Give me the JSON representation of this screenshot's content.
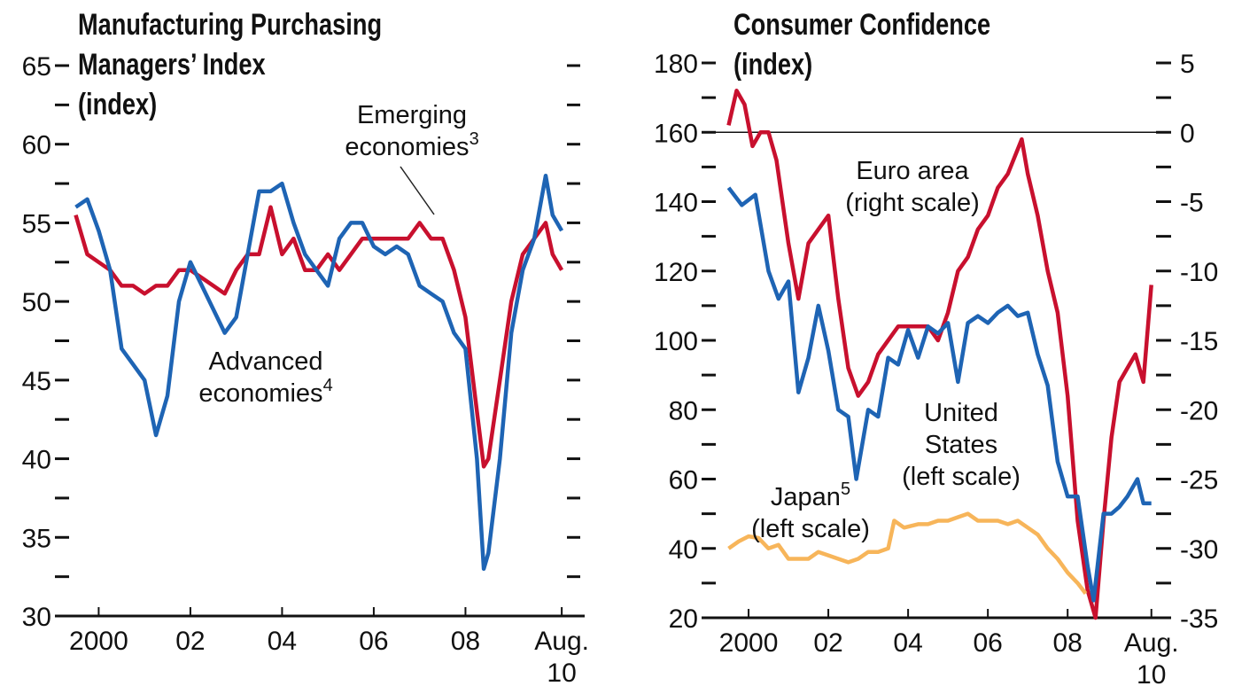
{
  "chart_data": [
    {
      "type": "line",
      "title": "Manufacturing Purchasing Managers’ Index",
      "ylabel": "(index)",
      "xlim": [
        1999.7,
        2011.1
      ],
      "xticks": [
        {
          "value": 2000.5,
          "label": "2000"
        },
        {
          "value": 2002.5,
          "label": "02"
        },
        {
          "value": 2004.5,
          "label": "04"
        },
        {
          "value": 2006.5,
          "label": "06"
        },
        {
          "value": 2008.5,
          "label": "08"
        },
        {
          "value": 2010.6,
          "label": "Aug. 10"
        }
      ],
      "ylim": [
        30,
        65
      ],
      "yticks": [
        30,
        35,
        40,
        45,
        50,
        55,
        60,
        65
      ],
      "minor_yticks": [
        32.5,
        37.5,
        42.5,
        47.5,
        52.5,
        57.5,
        62.5
      ],
      "series": [
        {
          "name": "Emerging economies",
          "sup": "3",
          "color": "#c8102e",
          "x": [
            2000,
            2000.25,
            2000.5,
            2000.75,
            2001,
            2001.25,
            2001.5,
            2001.75,
            2002,
            2002.25,
            2002.5,
            2002.75,
            2003,
            2003.25,
            2003.5,
            2003.75,
            2004,
            2004.25,
            2004.5,
            2004.75,
            2005,
            2005.25,
            2005.5,
            2005.75,
            2006,
            2006.25,
            2006.5,
            2006.75,
            2007,
            2007.25,
            2007.5,
            2007.75,
            2008,
            2008.25,
            2008.5,
            2008.75,
            2008.9,
            2009,
            2009.25,
            2009.5,
            2009.75,
            2010,
            2010.25,
            2010.4,
            2010.6
          ],
          "values": [
            55.5,
            53,
            52.5,
            52,
            51,
            51,
            50.5,
            51,
            51,
            52,
            52,
            51.5,
            51,
            50.5,
            52,
            53,
            53,
            56,
            53,
            54,
            52,
            52,
            53,
            52,
            53,
            54,
            54,
            54,
            54,
            54,
            55,
            54,
            54,
            52,
            49,
            43,
            39.5,
            40,
            45,
            50,
            53,
            54,
            55,
            53,
            52
          ]
        },
        {
          "name": "Advanced economies",
          "sup": "4",
          "color": "#1e64b4",
          "x": [
            2000,
            2000.25,
            2000.5,
            2000.75,
            2001,
            2001.25,
            2001.5,
            2001.75,
            2002,
            2002.25,
            2002.5,
            2002.75,
            2003,
            2003.25,
            2003.5,
            2003.75,
            2004,
            2004.25,
            2004.5,
            2004.75,
            2005,
            2005.25,
            2005.5,
            2005.75,
            2006,
            2006.25,
            2006.5,
            2006.75,
            2007,
            2007.25,
            2007.5,
            2007.75,
            2008,
            2008.25,
            2008.5,
            2008.75,
            2008.9,
            2009,
            2009.25,
            2009.5,
            2009.75,
            2010,
            2010.25,
            2010.4,
            2010.6
          ],
          "values": [
            56,
            56.5,
            54.5,
            52,
            47,
            46,
            45,
            41.5,
            44,
            50,
            52.5,
            51,
            49.5,
            48,
            49,
            53,
            57,
            57,
            57.5,
            55,
            53,
            52,
            51,
            54,
            55,
            55,
            53.5,
            53,
            53.5,
            53,
            51,
            50.5,
            50,
            48,
            47,
            40,
            33,
            34,
            40,
            48,
            52,
            54,
            58,
            55.5,
            54.5
          ]
        }
      ]
    },
    {
      "type": "line",
      "title": "Consumer Confidence",
      "ylabel": "(index)",
      "xlim": [
        1999.5,
        2011.05
      ],
      "xticks": [
        {
          "value": 2000.5,
          "label": "2000"
        },
        {
          "value": 2002.5,
          "label": "02"
        },
        {
          "value": 2004.5,
          "label": "04"
        },
        {
          "value": 2006.5,
          "label": "06"
        },
        {
          "value": 2008.5,
          "label": "08"
        },
        {
          "value": 2010.6,
          "label": "Aug. 10"
        }
      ],
      "ylim": [
        20,
        180
      ],
      "yticks": [
        20,
        40,
        60,
        80,
        100,
        120,
        140,
        160,
        180
      ],
      "minor_yticks": [
        30,
        50,
        70,
        90,
        110,
        130,
        150,
        170
      ],
      "y2lim": [
        -35,
        5
      ],
      "y2ticks": [
        -35,
        -30,
        -25,
        -20,
        -15,
        -10,
        -5,
        0,
        5
      ],
      "minor_y2ticks": [
        -32.5,
        -27.5,
        -22.5,
        -17.5,
        -12.5,
        -7.5,
        -2.5,
        2.5
      ],
      "y2_refline": 0,
      "series": [
        {
          "name": "Euro area",
          "note": "(right scale)",
          "color": "#c8102e",
          "axis": "y2",
          "x": [
            2000,
            2000.2,
            2000.4,
            2000.6,
            2000.8,
            2001,
            2001.2,
            2001.5,
            2001.75,
            2002,
            2002.25,
            2002.5,
            2002.75,
            2003,
            2003.25,
            2003.5,
            2003.75,
            2004,
            2004.25,
            2004.5,
            2004.75,
            2005,
            2005.25,
            2005.5,
            2005.75,
            2006,
            2006.25,
            2006.5,
            2006.75,
            2007,
            2007.35,
            2007.5,
            2007.75,
            2008,
            2008.25,
            2008.5,
            2008.75,
            2009,
            2009.2,
            2009.4,
            2009.6,
            2009.8,
            2010,
            2010.2,
            2010.4,
            2010.6
          ],
          "values": [
            0.5,
            3,
            2,
            -1,
            0,
            0,
            -2,
            -8,
            -12,
            -8,
            -7,
            -6,
            -12,
            -17,
            -19,
            -18,
            -16,
            -15,
            -14,
            -14,
            -14,
            -14,
            -15,
            -13,
            -10,
            -9,
            -7,
            -6,
            -4,
            -3,
            -0.5,
            -3,
            -6,
            -10,
            -13,
            -19,
            -28,
            -33,
            -35,
            -28,
            -22,
            -18,
            -17,
            -16,
            -18,
            -11
          ]
        },
        {
          "name": "United States",
          "note": "(left scale)",
          "color": "#1e64b4",
          "x": [
            2000,
            2000.33,
            2000.67,
            2001,
            2001.25,
            2001.5,
            2001.75,
            2002,
            2002.25,
            2002.5,
            2002.75,
            2003,
            2003.2,
            2003.5,
            2003.75,
            2004,
            2004.25,
            2004.5,
            2004.75,
            2005,
            2005.25,
            2005.5,
            2005.75,
            2006,
            2006.25,
            2006.5,
            2006.75,
            2007,
            2007.25,
            2007.5,
            2007.75,
            2008,
            2008.25,
            2008.5,
            2008.75,
            2009,
            2009.15,
            2009.4,
            2009.6,
            2009.8,
            2010,
            2010.25,
            2010.4,
            2010.6
          ],
          "values": [
            144,
            139,
            142,
            120,
            112,
            117,
            85,
            95,
            110,
            97,
            80,
            78,
            60,
            80,
            78,
            95,
            93,
            103,
            95,
            104,
            102,
            105,
            88,
            105,
            107,
            105,
            108,
            110,
            107,
            108,
            96,
            87,
            65,
            55,
            55,
            35,
            25,
            50,
            50,
            52,
            55,
            60,
            53,
            53
          ]
        },
        {
          "name": "Japan",
          "sup": "5",
          "note": "(left scale)",
          "color": "#f7b55a",
          "x": [
            2000,
            2000.25,
            2000.5,
            2000.75,
            2001,
            2001.25,
            2001.5,
            2001.75,
            2002,
            2002.25,
            2002.5,
            2002.75,
            2003,
            2003.25,
            2003.5,
            2003.75,
            2004,
            2004.15,
            2004.4,
            2004.75,
            2005,
            2005.25,
            2005.5,
            2005.75,
            2006,
            2006.25,
            2006.5,
            2006.75,
            2007,
            2007.25,
            2007.5,
            2007.75,
            2008,
            2008.25,
            2008.5,
            2008.75,
            2008.95
          ],
          "values": [
            40,
            42,
            43.5,
            43,
            40,
            41,
            37,
            37,
            37,
            39,
            38,
            37,
            36,
            37,
            39,
            39,
            40,
            48,
            46,
            47,
            47,
            48,
            48,
            49,
            50,
            48,
            48,
            48,
            47,
            48,
            46,
            44,
            40,
            37,
            33,
            30,
            27
          ]
        }
      ]
    }
  ]
}
